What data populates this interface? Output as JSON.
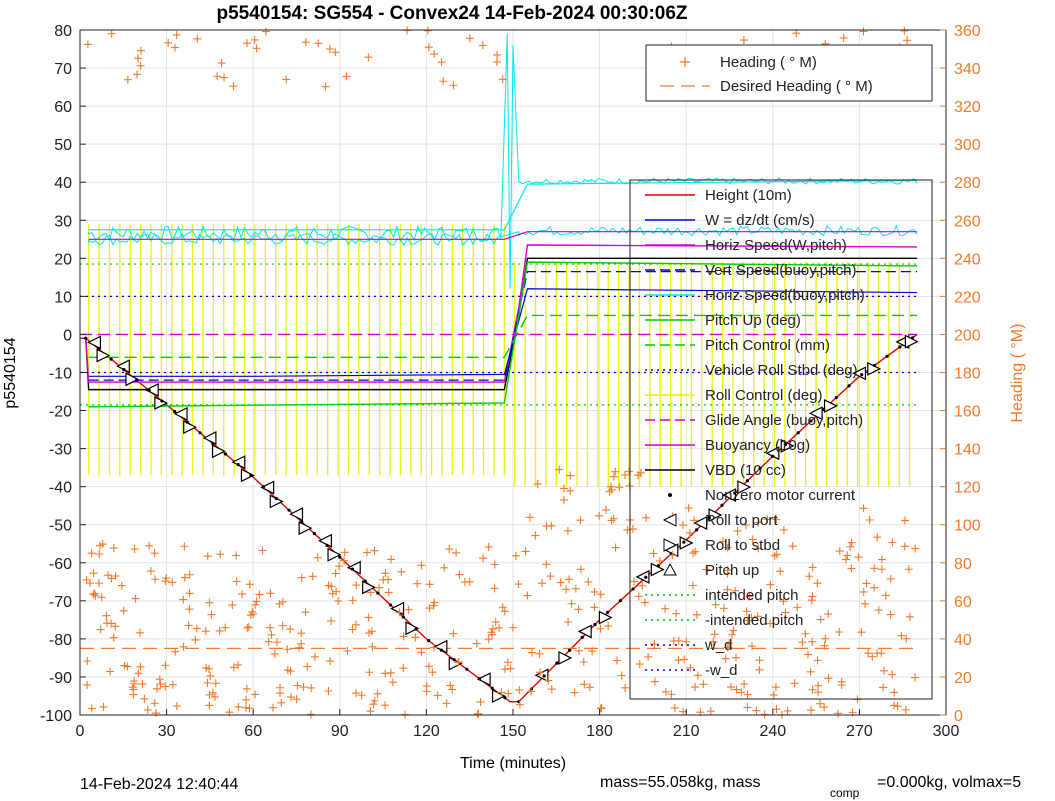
{
  "chart_data": {
    "type": "line",
    "title": "p5540154: SG554 - Convex24 14-Feb-2024 00:30:06Z",
    "xlabel": "Time (minutes)",
    "ylabel": "p5540154",
    "ylabel_right": "Heading (  °M)",
    "xlim": [
      0,
      300
    ],
    "ylim": [
      -100,
      80
    ],
    "ylim_right": [
      0,
      360
    ],
    "x_ticks": [
      "0",
      "30",
      "60",
      "90",
      "120",
      "150",
      "180",
      "210",
      "240",
      "270",
      "300"
    ],
    "y_ticks": [
      "-100",
      "-90",
      "-80",
      "-70",
      "-60",
      "-50",
      "-40",
      "-30",
      "-20",
      "-10",
      "0",
      "10",
      "20",
      "30",
      "40",
      "50",
      "60",
      "70",
      "80"
    ],
    "y_ticks_right": [
      "0",
      "20",
      "40",
      "60",
      "80",
      "100",
      "120",
      "140",
      "160",
      "180",
      "200",
      "220",
      "240",
      "260",
      "280",
      "300",
      "320",
      "340",
      "360"
    ],
    "grid": true,
    "legend_top": {
      "placement": "top-right",
      "entries": [
        {
          "label": "Heading (  ° M)",
          "color": "#f47a2a",
          "style": "plus"
        },
        {
          "label": "Desired Heading (    ° M)",
          "color": "#f47a2a",
          "style": "dash"
        }
      ]
    },
    "legend_main": {
      "placement": "right",
      "entries": [
        {
          "label": "Height (10m)",
          "color": "#e00000",
          "style": "line"
        },
        {
          "label": "W = dz/dt (cm/s)",
          "color": "#0000e0",
          "style": "line"
        },
        {
          "label": "Horiz Speed(W,pitch)",
          "color": "#d000d0",
          "style": "line"
        },
        {
          "label": "Vert Speed(buoy,pitch)",
          "color": "#0000e0",
          "style": "dash"
        },
        {
          "label": "Horiz Speed(buoy,pitch)",
          "color": "#00e8e8",
          "style": "line"
        },
        {
          "label": "Pitch Up (deg)",
          "color": "#00cc00",
          "style": "line"
        },
        {
          "label": "Pitch Control (mm)",
          "color": "#00cc00",
          "style": "dash"
        },
        {
          "label": "Vehicle Roll Stbd (deg)",
          "color": "#0000e0",
          "style": "dot"
        },
        {
          "label": "Roll Control (deg)",
          "color": "#f0f000",
          "style": "line"
        },
        {
          "label": "Glide Angle (buoy,pitch)",
          "color": "#d000d0",
          "style": "dash"
        },
        {
          "label": "Buoyancy (10g)",
          "color": "#d000d0",
          "style": "line"
        },
        {
          "label": "VBD (10 cc)",
          "color": "#000000",
          "style": "line"
        },
        {
          "label": "Nonzero motor current",
          "color": "#000000",
          "style": "dotmark"
        },
        {
          "label": "Roll to port",
          "color": "#000000",
          "style": "tri-left"
        },
        {
          "label": "Roll to stbd",
          "color": "#000000",
          "style": "tri-right"
        },
        {
          "label": "Pitch up",
          "color": "#000000",
          "style": "tri-up"
        },
        {
          "label": "intended pitch",
          "color": "#00cc00",
          "style": "dot"
        },
        {
          "label": "-intended pitch",
          "color": "#00cc00",
          "style": "dot"
        },
        {
          "label": "w_d",
          "color": "#0000e0",
          "style": "dot"
        },
        {
          "label": "-w_d",
          "color": "#0000e0",
          "style": "dot"
        }
      ]
    },
    "series": [
      {
        "name": "Height (10m)",
        "x": [
          0,
          2,
          30,
          60,
          90,
          120,
          149,
          152,
          180,
          210,
          240,
          270,
          290
        ],
        "y": [
          -1,
          -1,
          -18.5,
          -37.5,
          -58.5,
          -80,
          -96.5,
          -96.5,
          -75,
          -54,
          -32,
          -11,
          0
        ]
      },
      {
        "name": "VBD (10 cc)",
        "x": [
          0,
          2,
          3,
          147,
          152,
          155,
          290
        ],
        "y": [
          -1,
          -1,
          -14.5,
          -14.5,
          5,
          20,
          20
        ]
      },
      {
        "name": "Buoyancy (10g)",
        "x": [
          0,
          2,
          3,
          147,
          152,
          155,
          290
        ],
        "y": [
          -1,
          -1,
          -12.5,
          -12.5,
          7,
          23.5,
          23
        ]
      },
      {
        "name": "W = dz/dt (cm/s)",
        "x": [
          3,
          60,
          147,
          155,
          290
        ],
        "y": [
          -11,
          -11,
          -10.5,
          12,
          11
        ]
      },
      {
        "name": "Vert Speed(buoy,pitch)",
        "x": [
          3,
          147,
          155,
          290
        ],
        "y": [
          -12,
          -12,
          16.5,
          16.5
        ]
      },
      {
        "name": "Horiz Speed(buoy,pitch)",
        "x": [
          3,
          147,
          155,
          290
        ],
        "y": [
          27.5,
          27.5,
          39.5,
          40.5
        ]
      },
      {
        "name": "Horiz Speed(W,pitch)",
        "x": [
          3,
          147,
          155,
          290
        ],
        "y": [
          25,
          25,
          27,
          27
        ]
      },
      {
        "name": "Pitch Up (deg)",
        "x": [
          3,
          147,
          155,
          290
        ],
        "y": [
          -19,
          -18,
          19,
          18
        ]
      },
      {
        "name": "Pitch Control (mm)",
        "x": [
          3,
          147,
          155,
          290
        ],
        "y": [
          -6,
          -6,
          5,
          5
        ]
      },
      {
        "name": "Glide Angle (buoy,pitch)",
        "x": [
          0,
          290
        ],
        "y": [
          0,
          0
        ]
      },
      {
        "name": "intended pitch",
        "x": [
          0,
          290
        ],
        "y": [
          18.5,
          18.5
        ]
      },
      {
        "name": "-intended pitch",
        "x": [
          0,
          290
        ],
        "y": [
          -18.5,
          -18.5
        ]
      },
      {
        "name": "w_d",
        "x": [
          0,
          290
        ],
        "y": [
          10,
          10
        ]
      },
      {
        "name": "-w_d",
        "x": [
          0,
          290
        ],
        "y": [
          -10,
          -10
        ]
      },
      {
        "name": "Desired Heading (    ° M)",
        "axis": "right",
        "x": [
          0,
          290
        ],
        "y": [
          35,
          35
        ]
      }
    ],
    "markers": {
      "roll_to_port_x": [
        5,
        15,
        25,
        35,
        45,
        55,
        65,
        75,
        85,
        95,
        110,
        125,
        140,
        160,
        175,
        195,
        205,
        215,
        225,
        240,
        255,
        270,
        285
      ],
      "roll_to_stbd_x": [
        8,
        18,
        28,
        38,
        48,
        58,
        68,
        78,
        88,
        100,
        115,
        130,
        145,
        168,
        182,
        200,
        210,
        220,
        230,
        245,
        260,
        275,
        288
      ]
    }
  },
  "footer": {
    "timestamp": "14-Feb-2024 12:40:44",
    "mass_text": "mass=55.058kg, mass",
    "mass_sub": "comp",
    "volmax_text": "=0.000kg, volmax=5"
  }
}
